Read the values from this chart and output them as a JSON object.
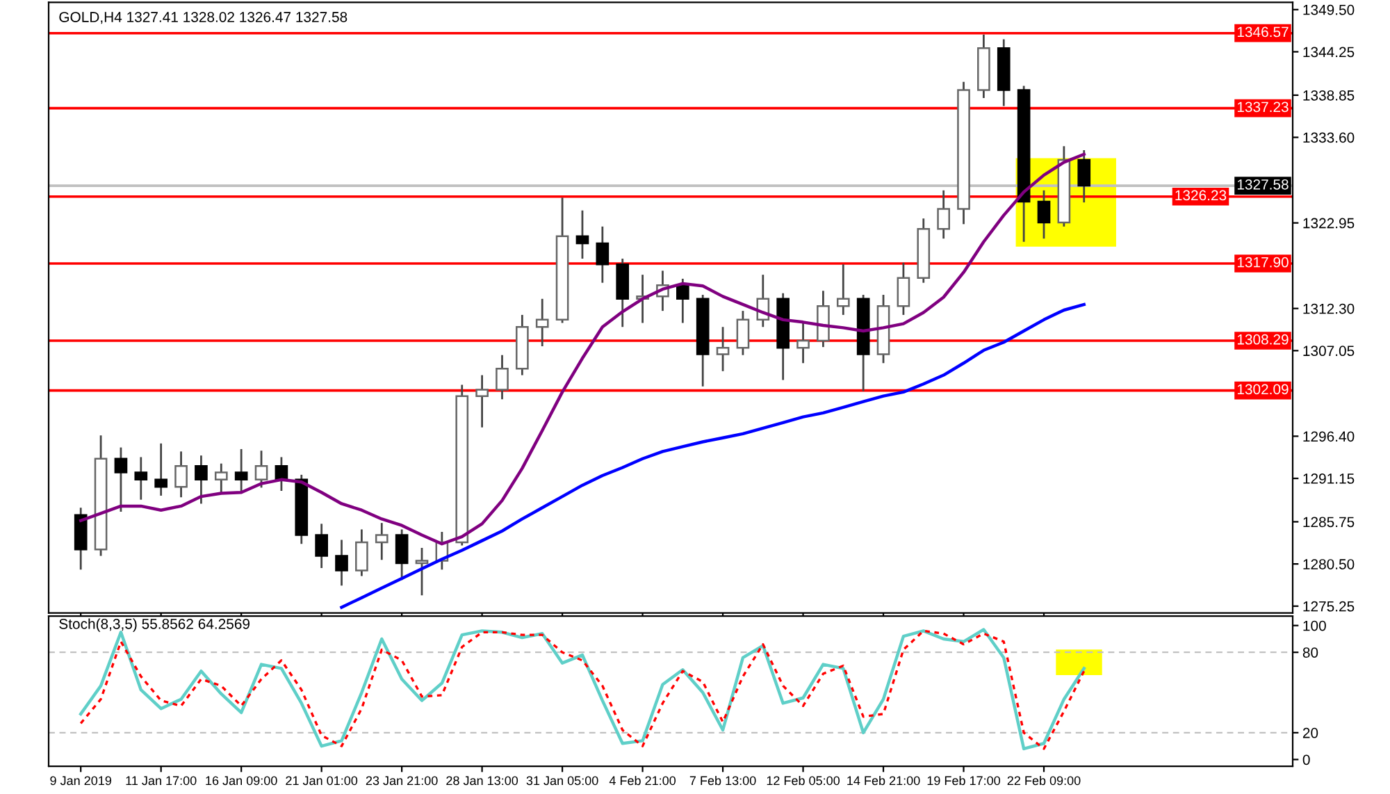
{
  "chart_data": [
    {
      "type": "candlestick",
      "title": "GOLD,H4 1327.41 1328.02 1326.47 1327.58",
      "categories": [
        null,
        null,
        null,
        null,
        null,
        null,
        null,
        null,
        null,
        null,
        null,
        null,
        null,
        null,
        null,
        null,
        null,
        null,
        null,
        null,
        null,
        null,
        null,
        null,
        null,
        null,
        null,
        null,
        null,
        null,
        null,
        null,
        null,
        null,
        null,
        null,
        null,
        null,
        null,
        null,
        null,
        null,
        null,
        null,
        null,
        null,
        null,
        null,
        null,
        null,
        null
      ],
      "ohlc": [
        [
          1286.6,
          1287.5,
          1279.8,
          1282.3
        ],
        [
          1282.3,
          1296.5,
          1281.5,
          1293.6
        ],
        [
          1293.6,
          1295.0,
          1287.0,
          1291.9
        ],
        [
          1291.9,
          1293.8,
          1288.5,
          1291.0
        ],
        [
          1291.0,
          1295.5,
          1289.0,
          1290.1
        ],
        [
          1290.1,
          1294.5,
          1288.8,
          1292.7
        ],
        [
          1292.7,
          1294.0,
          1288.0,
          1291.0
        ],
        [
          1291.0,
          1293.0,
          1289.2,
          1291.9
        ],
        [
          1291.9,
          1294.8,
          1289.5,
          1291.0
        ],
        [
          1291.0,
          1294.6,
          1290.0,
          1292.7
        ],
        [
          1292.7,
          1293.8,
          1289.6,
          1291.0
        ],
        [
          1291.0,
          1291.6,
          1283.0,
          1284.1
        ],
        [
          1284.1,
          1285.5,
          1280.0,
          1281.5
        ],
        [
          1281.5,
          1283.5,
          1277.8,
          1279.7
        ],
        [
          1279.7,
          1284.8,
          1279.0,
          1283.2
        ],
        [
          1283.2,
          1285.6,
          1281.0,
          1284.1
        ],
        [
          1284.1,
          1284.8,
          1278.5,
          1280.6
        ],
        [
          1280.6,
          1282.5,
          1276.6,
          1280.9
        ],
        [
          1280.9,
          1284.5,
          1279.8,
          1283.2
        ],
        [
          1283.2,
          1302.8,
          1282.8,
          1301.4
        ],
        [
          1301.4,
          1304.0,
          1297.5,
          1302.2
        ],
        [
          1302.2,
          1306.5,
          1301.0,
          1304.8
        ],
        [
          1304.8,
          1311.5,
          1304.0,
          1310.0
        ],
        [
          1310.0,
          1313.5,
          1307.6,
          1310.9
        ],
        [
          1310.9,
          1326.1,
          1310.5,
          1321.3
        ],
        [
          1321.3,
          1324.5,
          1318.5,
          1320.4
        ],
        [
          1320.4,
          1322.5,
          1315.5,
          1317.8
        ],
        [
          1317.8,
          1318.5,
          1310.0,
          1313.5
        ],
        [
          1313.5,
          1316.5,
          1310.5,
          1313.8
        ],
        [
          1313.8,
          1317.0,
          1312.0,
          1315.2
        ],
        [
          1315.2,
          1316.0,
          1310.5,
          1313.5
        ],
        [
          1313.5,
          1314.0,
          1302.6,
          1306.6
        ],
        [
          1306.6,
          1310.0,
          1304.5,
          1307.4
        ],
        [
          1307.4,
          1312.0,
          1306.5,
          1310.9
        ],
        [
          1310.9,
          1316.5,
          1310.0,
          1313.5
        ],
        [
          1313.5,
          1314.2,
          1303.4,
          1307.4
        ],
        [
          1307.4,
          1310.5,
          1305.5,
          1308.3
        ],
        [
          1308.3,
          1314.5,
          1307.5,
          1312.6
        ],
        [
          1312.6,
          1317.8,
          1311.5,
          1313.5
        ],
        [
          1313.5,
          1314.0,
          1302.0,
          1306.6
        ],
        [
          1306.6,
          1314.0,
          1305.5,
          1312.6
        ],
        [
          1312.6,
          1318.0,
          1311.5,
          1316.1
        ],
        [
          1316.1,
          1323.5,
          1315.5,
          1322.2
        ],
        [
          1322.2,
          1327.0,
          1321.0,
          1324.7
        ],
        [
          1324.7,
          1340.5,
          1322.8,
          1339.5
        ],
        [
          1339.5,
          1346.4,
          1338.5,
          1344.7
        ],
        [
          1344.7,
          1345.8,
          1337.5,
          1339.5
        ],
        [
          1339.5,
          1340.0,
          1320.6,
          1325.6
        ],
        [
          1325.6,
          1327.0,
          1321.0,
          1323.0
        ],
        [
          1323.0,
          1332.5,
          1322.5,
          1330.8
        ],
        [
          1330.8,
          1332.0,
          1325.5,
          1327.6
        ]
      ],
      "series": [
        {
          "type": "line",
          "color": "#800080",
          "values": [
            1285.9,
            1286.8,
            1287.7,
            1287.7,
            1287.2,
            1287.7,
            1288.9,
            1289.3,
            1289.4,
            1290.5,
            1291.0,
            1290.7,
            1289.4,
            1288.0,
            1287.2,
            1286.1,
            1285.3,
            1284.1,
            1283.0,
            1283.9,
            1285.5,
            1288.4,
            1292.4,
            1297.1,
            1301.9,
            1306.1,
            1310.0,
            1311.9,
            1313.5,
            1314.7,
            1315.4,
            1315.1,
            1313.8,
            1312.8,
            1311.8,
            1310.9,
            1310.6,
            1310.2,
            1309.9,
            1309.5,
            1309.9,
            1310.4,
            1311.8,
            1313.7,
            1316.8,
            1320.6,
            1323.9,
            1326.8,
            1328.9,
            1330.5,
            1331.5
          ]
        },
        {
          "type": "line",
          "color": "#0000ff",
          "values": [
            null,
            null,
            null,
            null,
            null,
            null,
            null,
            null,
            null,
            null,
            null,
            null,
            null,
            1275.1,
            1276.3,
            1277.5,
            1278.7,
            1279.9,
            1281.1,
            1282.2,
            1283.4,
            1284.6,
            1286.1,
            1287.5,
            1288.9,
            1290.3,
            1291.5,
            1292.5,
            1293.6,
            1294.5,
            1295.1,
            1295.7,
            1296.2,
            1296.7,
            1297.4,
            1298.1,
            1298.8,
            1299.3,
            1300.0,
            1300.7,
            1301.4,
            1301.9,
            1302.9,
            1304.0,
            1305.5,
            1307.1,
            1308.1,
            1309.5,
            1310.9,
            1312.1,
            1312.8
          ]
        }
      ],
      "ylim": [
        1274.4,
        1350.4
      ],
      "yticks": [
        {
          "value": 1349.5,
          "label": "1349.50"
        },
        {
          "value": 1344.25,
          "label": "1344.25"
        },
        {
          "value": 1338.85,
          "label": "1338.85"
        },
        {
          "value": 1333.6,
          "label": "1333.60"
        },
        {
          "value": 1322.95,
          "label": "1322.95"
        },
        {
          "value": 1312.3,
          "label": "1312.30"
        },
        {
          "value": 1307.05,
          "label": "1307.05"
        },
        {
          "value": 1296.4,
          "label": "1296.40"
        },
        {
          "value": 1291.15,
          "label": "1291.15"
        },
        {
          "value": 1285.75,
          "label": "1285.75"
        },
        {
          "value": 1280.5,
          "label": "1280.50"
        },
        {
          "value": 1275.25,
          "label": "1275.25"
        }
      ],
      "ref_lines": [
        {
          "axis": "y",
          "value": 1346.57,
          "label": "1346.57",
          "color": "#ff0000"
        },
        {
          "axis": "y",
          "value": 1337.23,
          "label": "1337.23",
          "color": "#ff0000"
        },
        {
          "axis": "y",
          "value": 1327.58,
          "label": "1327.58",
          "color": "#c0c0c0"
        },
        {
          "axis": "y",
          "value": 1326.23,
          "label": "1326.23",
          "color": "#ff0000"
        },
        {
          "axis": "y",
          "value": 1317.9,
          "label": "1317.90",
          "color": "#ff0000"
        },
        {
          "axis": "y",
          "value": 1308.29,
          "label": "1308.29",
          "color": "#ff0000"
        },
        {
          "axis": "y",
          "value": 1302.09,
          "label": "1302.09",
          "color": "#ff0000"
        }
      ],
      "tick_labels": "y",
      "grid": false
    },
    {
      "type": "line",
      "title": "Stoch(8,3,5) 55.8562 64.2569",
      "categories": [
        "9 Jan 2019",
        null,
        null,
        null,
        "11 Jan 17:00",
        null,
        null,
        null,
        "16 Jan 09:00",
        null,
        null,
        null,
        "21 Jan 01:00",
        null,
        null,
        null,
        "23 Jan 21:00",
        null,
        null,
        null,
        "28 Jan 13:00",
        null,
        null,
        null,
        "31 Jan 05:00",
        null,
        null,
        null,
        "4 Feb 21:00",
        null,
        null,
        null,
        "7 Feb 13:00",
        null,
        null,
        null,
        "12 Feb 05:00",
        null,
        null,
        null,
        "14 Feb 21:00",
        null,
        null,
        null,
        "19 Feb 17:00",
        null,
        null,
        null,
        "22 Feb 09:00",
        null,
        null
      ],
      "series": [
        {
          "color": "#5fcfc8",
          "line_style": "solid",
          "values": [
            34,
            55,
            95,
            52,
            38,
            45,
            66,
            49,
            35,
            71,
            68,
            42,
            10,
            14,
            50,
            90,
            60,
            44,
            57,
            93,
            96,
            95,
            91,
            94,
            72,
            78,
            44,
            12,
            14,
            56,
            67,
            50,
            22,
            76,
            85,
            42,
            46,
            71,
            68,
            20,
            45,
            92,
            96,
            90,
            88,
            97,
            76,
            8,
            12,
            45,
            68
          ]
        },
        {
          "color": "#ff0000",
          "line_style": "dotted",
          "values": [
            27,
            45,
            88,
            62,
            44,
            40,
            60,
            55,
            40,
            60,
            74,
            52,
            18,
            10,
            38,
            82,
            74,
            47,
            48,
            84,
            95,
            95,
            93,
            93,
            80,
            74,
            55,
            22,
            10,
            42,
            66,
            58,
            28,
            62,
            86,
            55,
            40,
            64,
            70,
            32,
            34,
            82,
            96,
            94,
            86,
            94,
            88,
            20,
            8,
            36,
            66
          ]
        }
      ],
      "ylim": [
        -5,
        107
      ],
      "yticks": [
        0,
        20,
        80,
        100
      ],
      "ref_lines": [
        {
          "axis": "y",
          "value": 20,
          "color": "#c0c0c0",
          "line_style": "dashed"
        },
        {
          "axis": "y",
          "value": 80,
          "color": "#c0c0c0",
          "line_style": "dashed"
        }
      ],
      "grid": false
    }
  ]
}
